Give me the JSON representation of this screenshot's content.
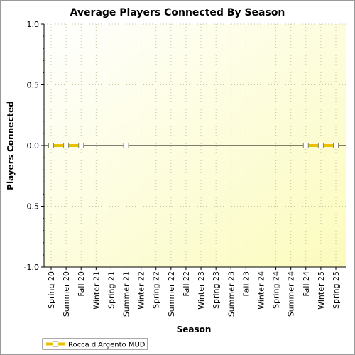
{
  "chart_data": {
    "type": "line",
    "title": "Average Players Connected By Season",
    "xlabel": "Season",
    "ylabel": "Players Connected",
    "ylim": [
      -1.0,
      1.0
    ],
    "yticks": [
      "1.0",
      "0.5",
      "0.0",
      "-0.5",
      "-1.0"
    ],
    "ytick_values": [
      1.0,
      0.5,
      0.0,
      -0.5,
      -1.0
    ],
    "categories": [
      "Spring 20",
      "Summer 20",
      "Fall 20",
      "Winter 21",
      "Spring 21",
      "Summer 21",
      "Winter 22",
      "Spring 22",
      "Summer 22",
      "Fall 22",
      "Winter 23",
      "Spring 23",
      "Summer 23",
      "Fall 23",
      "Winter 24",
      "Spring 24",
      "Summer 24",
      "Fall 24",
      "Winter 25",
      "Spring 25"
    ],
    "series": [
      {
        "name": "Rocca d'Argento MUD",
        "color": "#e8c200",
        "values": [
          0,
          0,
          0,
          null,
          null,
          0,
          null,
          null,
          null,
          null,
          null,
          null,
          null,
          null,
          null,
          null,
          null,
          0,
          0,
          0
        ]
      }
    ],
    "grid": true,
    "legend_position": "bottom-left",
    "colors": {
      "plot_bg_top": "#ffffee",
      "plot_bg_bottom": "#fbfbbf",
      "zero_line": "#000000",
      "grid": "#c8c8a0"
    }
  }
}
